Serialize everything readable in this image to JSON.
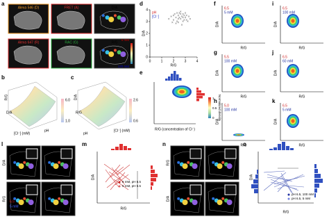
{
  "panel_labels": [
    "a",
    "b",
    "c",
    "d",
    "e",
    "f",
    "g",
    "h",
    "i",
    "j",
    "k",
    "l",
    "m",
    "n",
    "o"
  ],
  "panel_a": {
    "titles": [
      "Alexa 546 (D)",
      "FRET (A)",
      "D/A",
      "Alexa 647 (R)",
      "RAC (G)",
      "R/G"
    ],
    "scale": [
      "5 mM",
      "120 mM"
    ]
  },
  "panel_b": {
    "axes": [
      "R/G",
      "D/A",
      "[Cl⁻] (mM)",
      "pH"
    ],
    "colorbar": [
      "6.0",
      "1.0"
    ]
  },
  "panel_c": {
    "axes": [
      "D/A",
      "R/G",
      "pH",
      "[Cl⁻] (mM)"
    ],
    "colorbar": [
      "2.6",
      "0.6"
    ]
  },
  "chart_data": {
    "type": "scatter",
    "x": [
      1.6,
      1.8,
      2.0,
      2.1,
      2.2,
      2.3,
      2.4,
      2.5,
      2.6,
      2.7,
      2.8,
      2.9,
      3.0,
      3.1,
      3.2,
      3.3,
      2.2,
      2.4,
      2.6,
      2.8,
      3.0,
      2.5,
      2.7,
      2.9,
      1.9,
      2.3,
      3.4,
      2.0,
      2.6,
      3.1,
      2.4,
      2.8
    ],
    "y": [
      3.2,
      3.4,
      3.1,
      3.6,
      3.3,
      3.0,
      3.5,
      3.7,
      3.2,
      3.4,
      3.6,
      3.1,
      3.3,
      3.5,
      3.0,
      3.4,
      2.8,
      2.9,
      3.8,
      3.0,
      3.7,
      3.3,
      2.7,
      3.5,
      2.9,
      3.7,
      3.2,
      3.5,
      3.6,
      3.1,
      3.2,
      3.3
    ],
    "xlim": [
      0,
      4
    ],
    "ylim": [
      0,
      4
    ],
    "xticks": [
      0,
      1,
      2,
      3,
      4
    ],
    "yticks": [
      0,
      1,
      2,
      3,
      4
    ],
    "xlabel": "R/G",
    "ylabel": "D/A",
    "annotations": [
      "pH",
      "[Cl⁻]"
    ],
    "color": "#666666"
  },
  "panel_e": {
    "xlabel": "R/G (concentration of Cl⁻)",
    "colorbar_label": "Normalized density",
    "colorbar": [
      "1",
      "0.5",
      "0"
    ]
  },
  "panels_fk": [
    {
      "ph": "6.5",
      "conc": "5 mM"
    },
    {
      "ph": "5.5",
      "conc": "100 mM"
    },
    {
      "ph": "5.0",
      "conc": "100 mM"
    },
    {
      "ph": "6.5",
      "conc": "100 mM"
    },
    {
      "ph": "6.5",
      "conc": "60 mM"
    },
    {
      "ph": "6.5",
      "conc": "5 mM"
    }
  ],
  "axis_names": [
    "D/A",
    "R/G"
  ],
  "panel_l": {
    "ph": "6.5",
    "conc": "5 mM"
  },
  "panel_m": {
    "legend": [
      "5 mM, pH 6.5",
      "5 mM, pH 5.5"
    ]
  },
  "panel_o": {
    "legend": [
      "pH 6.5, 100 mM",
      "pH 6.5, 5 mM"
    ]
  }
}
